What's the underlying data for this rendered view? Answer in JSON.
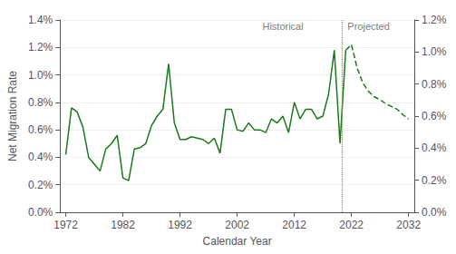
{
  "chart_data": {
    "type": "line",
    "xlabel": "Calendar Year",
    "ylabel": "Net Migration Rate",
    "series": [
      {
        "x": [
          1972,
          1973,
          1974,
          1975,
          1976,
          1977,
          1978,
          1979,
          1980,
          1981,
          1982,
          1983,
          1984,
          1985,
          1986,
          1987,
          1988,
          1989,
          1990,
          1991,
          1992,
          1993,
          1994,
          1995,
          1996,
          1997,
          1998,
          1999,
          2000,
          2001,
          2002,
          2003,
          2004,
          2005,
          2006,
          2007,
          2008,
          2009,
          2010,
          2011,
          2012,
          2013,
          2014,
          2015,
          2016,
          2017,
          2018,
          2019,
          2020,
          2021
        ],
        "values": [
          0.0042,
          0.0076,
          0.0073,
          0.0062,
          0.004,
          0.0035,
          0.003,
          0.0046,
          0.005,
          0.0056,
          0.0025,
          0.0023,
          0.0046,
          0.0047,
          0.005,
          0.0063,
          0.007,
          0.0075,
          0.0108,
          0.0065,
          0.0053,
          0.0053,
          0.0055,
          0.0054,
          0.0053,
          0.005,
          0.0054,
          0.0043,
          0.0075,
          0.0075,
          0.006,
          0.0059,
          0.0065,
          0.006,
          0.006,
          0.0058,
          0.0068,
          0.0065,
          0.007,
          0.0058,
          0.008,
          0.0068,
          0.0075,
          0.0075,
          0.0068,
          0.007,
          0.0086,
          0.0118,
          0.005,
          0.0118
        ],
        "color": "#1a7a1a",
        "line_style": "solid"
      },
      {
        "x": [
          2021,
          2022,
          2023,
          2024,
          2025,
          2026,
          2027,
          2028,
          2029,
          2030,
          2031,
          2032
        ],
        "values": [
          0.0118,
          0.0122,
          0.0105,
          0.0094,
          0.0088,
          0.0084,
          0.0082,
          0.0079,
          0.0077,
          0.0075,
          0.0071,
          0.0068
        ],
        "color": "#1a7a1a",
        "line_style": "dashed"
      }
    ],
    "vline": {
      "x": 2020.3,
      "color": "#b8860b",
      "line_style": "dotted"
    },
    "annotations": [
      {
        "text": "Historical",
        "x": 2010,
        "y": 0.0132
      },
      {
        "text": "Projected",
        "x": 2025,
        "y": 0.0132
      }
    ],
    "xlim": [
      1971,
      2033
    ],
    "xticks": [
      1972,
      1982,
      1992,
      2002,
      2012,
      2022,
      2032
    ],
    "ylim": [
      0,
      0.014
    ],
    "yticks": [
      {
        "value": 0.0,
        "label": "0.0%"
      },
      {
        "value": 0.002,
        "label": "0.2%"
      },
      {
        "value": 0.004,
        "label": "0.4%"
      },
      {
        "value": 0.006,
        "label": "0.6%"
      },
      {
        "value": 0.008,
        "label": "0.8%"
      },
      {
        "value": 0.01,
        "label": "1.0%"
      },
      {
        "value": 0.012,
        "label": "1.2%"
      },
      {
        "value": 0.014,
        "label": "1.4%"
      }
    ],
    "y2lim": [
      0,
      0.012
    ],
    "y2ticks": [
      {
        "value": 0.0,
        "label": "0.0%"
      },
      {
        "value": 0.002,
        "label": "0.2%"
      },
      {
        "value": 0.004,
        "label": "0.4%"
      },
      {
        "value": 0.006,
        "label": "0.6%"
      },
      {
        "value": 0.008,
        "label": "0.8%"
      },
      {
        "value": 0.01,
        "label": "1.0%"
      },
      {
        "value": 0.012,
        "label": "1.2%"
      }
    ],
    "grid": true
  }
}
